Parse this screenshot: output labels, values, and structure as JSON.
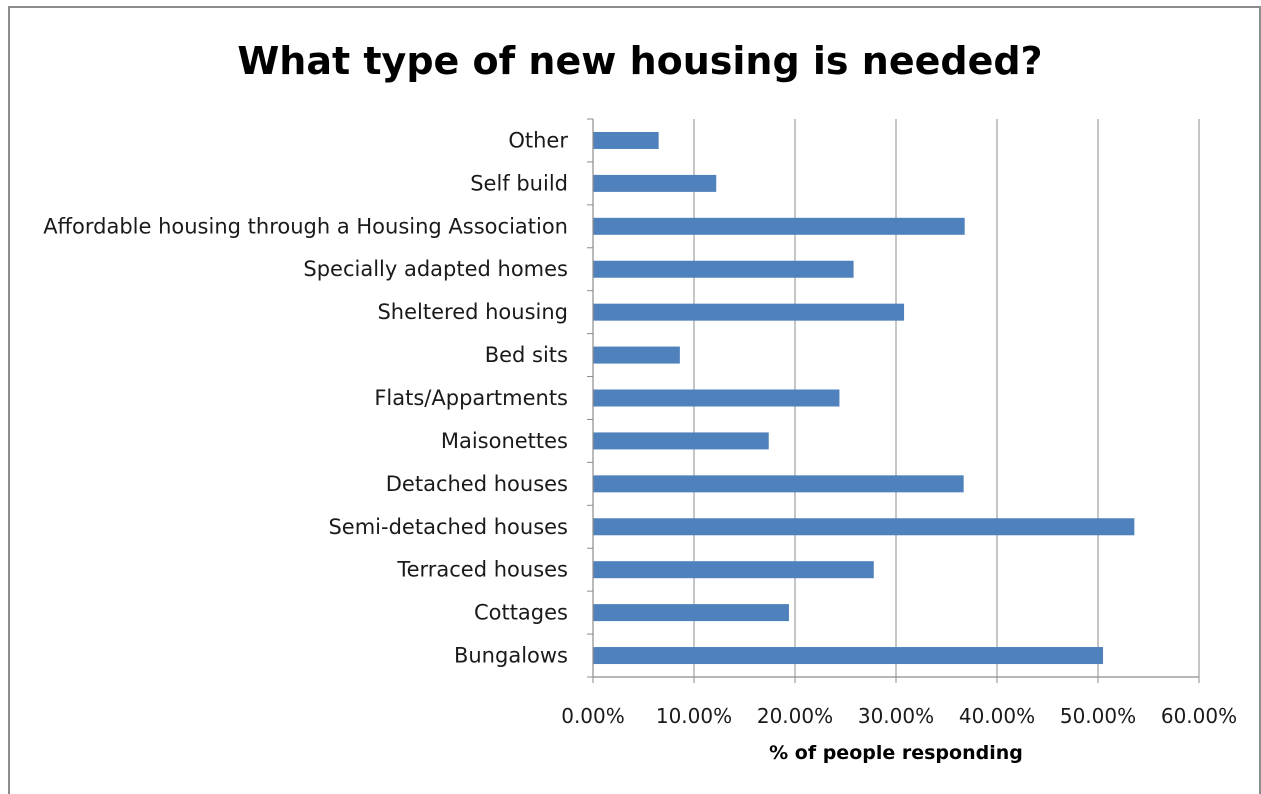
{
  "chart_data": {
    "type": "bar",
    "orientation": "horizontal",
    "title": "What type of new housing is needed?",
    "xlabel": "% of people responding",
    "ylabel": "",
    "categories": [
      "Other",
      "Self build",
      "Affordable housing through a Housing Association",
      "Specially adapted homes",
      "Sheltered housing",
      "Bed sits",
      "Flats/Appartments",
      "Maisonettes",
      "Detached houses",
      "Semi-detached houses",
      "Terraced houses",
      "Cottages",
      "Bungalows"
    ],
    "values": [
      6.5,
      12.2,
      36.8,
      25.8,
      30.8,
      8.6,
      24.4,
      17.4,
      36.7,
      53.6,
      27.8,
      19.4,
      50.5
    ],
    "xlim": [
      0,
      60
    ],
    "xticks": [
      0,
      10,
      20,
      30,
      40,
      50,
      60
    ],
    "xtick_labels": [
      "0.00%",
      "10.00%",
      "20.00%",
      "30.00%",
      "40.00%",
      "50.00%",
      "60.00%"
    ],
    "grid": "vertical major gridlines",
    "legend": "none",
    "colors": {
      "bar": "#4f81bd",
      "grid": "#8c8c8c",
      "axis": "#8c8c8c"
    }
  }
}
